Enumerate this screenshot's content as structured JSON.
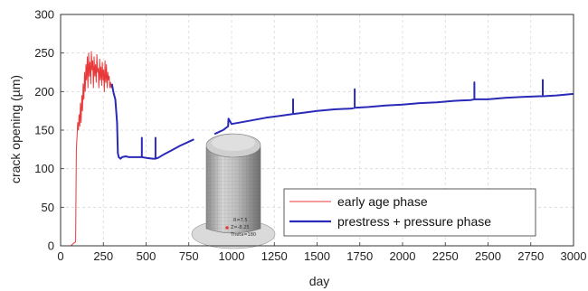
{
  "chart_data": {
    "type": "line",
    "xlabel": "day",
    "ylabel": "crack opening (µm)",
    "xlim": [
      0,
      3000
    ],
    "ylim": [
      0,
      300
    ],
    "xticks": [
      "0",
      "250",
      "500",
      "750",
      "1000",
      "1250",
      "1500",
      "1750",
      "2000",
      "2250",
      "2500",
      "2750",
      "3000"
    ],
    "yticks": [
      "0",
      "50",
      "100",
      "150",
      "200",
      "250",
      "300"
    ],
    "grid": true,
    "legend_position": "bottom-right",
    "series": [
      {
        "name": "early age phase",
        "color": "#e8393a",
        "x": [
          60,
          70,
          80,
          88,
          92,
          96,
          100,
          104,
          108,
          112,
          116,
          120,
          124,
          128,
          132,
          136,
          140,
          144,
          148,
          152,
          156,
          160,
          164,
          168,
          172,
          176,
          180,
          184,
          188,
          192,
          196,
          200,
          204,
          208,
          212,
          216,
          220,
          224,
          228,
          232,
          236,
          240,
          244,
          248,
          252,
          256,
          260,
          264,
          268,
          272,
          276,
          280,
          284,
          288,
          292,
          296,
          300
        ],
        "y": [
          0,
          2,
          4,
          5,
          125,
          140,
          160,
          150,
          170,
          155,
          185,
          160,
          195,
          175,
          210,
          190,
          225,
          200,
          235,
          215,
          245,
          205,
          250,
          220,
          238,
          210,
          252,
          228,
          240,
          205,
          245,
          220,
          235,
          212,
          248,
          225,
          230,
          205,
          242,
          215,
          232,
          208,
          238,
          215,
          228,
          200,
          240,
          212,
          235,
          205,
          225,
          215,
          220,
          205,
          212,
          205,
          210
        ]
      },
      {
        "name": "prestress + pressure phase",
        "color": "#2a2ab8",
        "x": [
          300,
          310,
          320,
          330,
          335,
          340,
          350,
          360,
          380,
          400,
          450,
          475,
          475,
          475,
          500,
          540,
          555,
          555,
          555,
          570,
          600,
          650,
          700,
          750,
          780,
          null,
          900,
          950,
          980,
          982,
          1000,
          1100,
          1200,
          1300,
          1360,
          1360,
          1360,
          1400,
          1500,
          1600,
          1700,
          1720,
          1720,
          1720,
          1800,
          1900,
          2000,
          2100,
          2200,
          2300,
          2400,
          2420,
          2420,
          2420,
          2500,
          2600,
          2700,
          2800,
          2820,
          2820,
          2820,
          2900,
          3000
        ],
        "y": [
          210,
          198,
          190,
          160,
          120,
          115,
          113,
          115,
          116,
          115,
          115,
          115,
          140,
          115,
          114,
          113,
          113,
          140,
          113,
          114,
          118,
          124,
          130,
          135,
          138,
          null,
          145,
          150,
          155,
          165,
          158,
          162,
          166,
          169,
          171,
          190,
          171,
          172,
          175,
          177,
          178,
          179,
          203,
          179,
          180,
          182,
          183,
          185,
          186,
          188,
          189,
          190,
          212,
          190,
          190,
          192,
          193,
          194,
          194,
          215,
          194,
          195,
          197
        ]
      }
    ]
  },
  "inset": {
    "labels": [
      "R=7.5",
      "Z=-8.25",
      "Theta=180"
    ]
  }
}
